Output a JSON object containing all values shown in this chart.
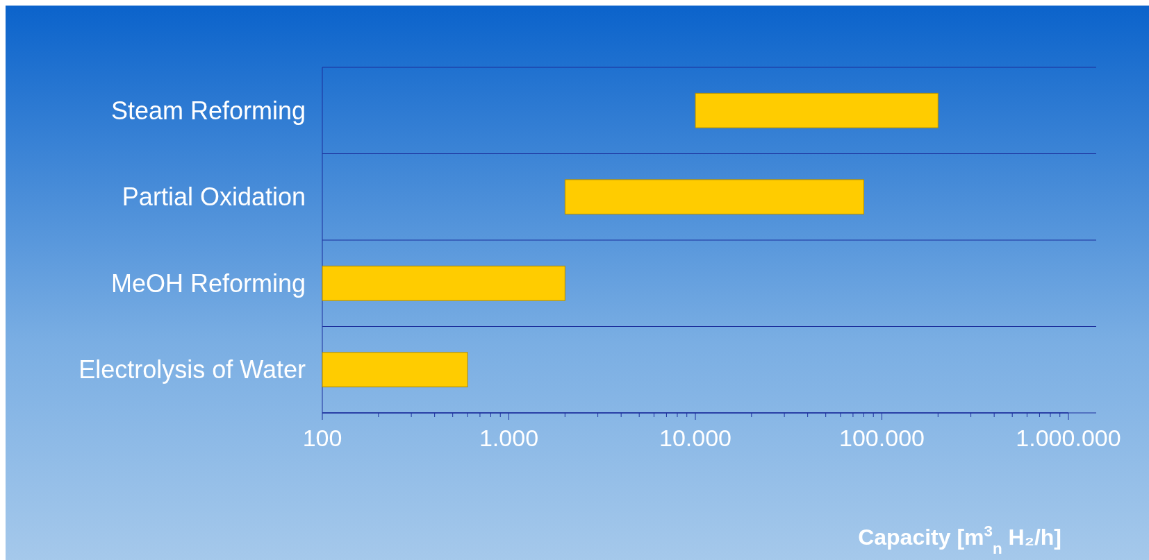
{
  "chart_data": {
    "type": "bar",
    "orientation": "horizontal",
    "log": "x",
    "grid": "y",
    "xlabel": "Capacity [m$^{3}$$_{n}$ H₂/h]",
    "categories": [
      "Steam Reforming",
      "Partial Oxidation",
      "MeOH Reforming",
      "Electrolysis of Water"
    ],
    "base": [
      10000,
      2000,
      100,
      100
    ],
    "values": [
      190000,
      78000,
      1900,
      500
    ],
    "color": "#ffcc00",
    "xlim": [
      100,
      1000000
    ],
    "xticks": [
      100,
      {
        "value": 200,
        "label": null
      },
      {
        "value": 300,
        "label": null
      },
      {
        "value": 400,
        "label": null
      },
      {
        "value": 500,
        "label": null
      },
      {
        "value": 600,
        "label": null
      },
      {
        "value": 700,
        "label": null
      },
      {
        "value": 800,
        "label": null
      },
      {
        "value": 900,
        "label": null
      },
      {
        "value": 1000,
        "label": "1.000"
      },
      {
        "value": 2000,
        "label": null
      },
      {
        "value": 3000,
        "label": null
      },
      {
        "value": 4000,
        "label": null
      },
      {
        "value": 5000,
        "label": null
      },
      {
        "value": 6000,
        "label": null
      },
      {
        "value": 7000,
        "label": null
      },
      {
        "value": 8000,
        "label": null
      },
      {
        "value": 9000,
        "label": null
      },
      {
        "value": 10000,
        "label": "10.000"
      },
      {
        "value": 20000,
        "label": null
      },
      {
        "value": 30000,
        "label": null
      },
      {
        "value": 40000,
        "label": null
      },
      {
        "value": 50000,
        "label": null
      },
      {
        "value": 60000,
        "label": null
      },
      {
        "value": 70000,
        "label": null
      },
      {
        "value": 80000,
        "label": null
      },
      {
        "value": 90000,
        "label": null
      },
      {
        "value": 100000,
        "label": "100.000"
      },
      {
        "value": 200000,
        "label": null
      },
      {
        "value": 300000,
        "label": null
      },
      {
        "value": 400000,
        "label": null
      },
      {
        "value": 500000,
        "label": null
      },
      {
        "value": 600000,
        "label": null
      },
      {
        "value": 700000,
        "label": null
      },
      {
        "value": 800000,
        "label": null
      },
      {
        "value": 900000,
        "label": null
      },
      {
        "value": 1000000,
        "label": "1.000.000"
      }
    ]
  }
}
